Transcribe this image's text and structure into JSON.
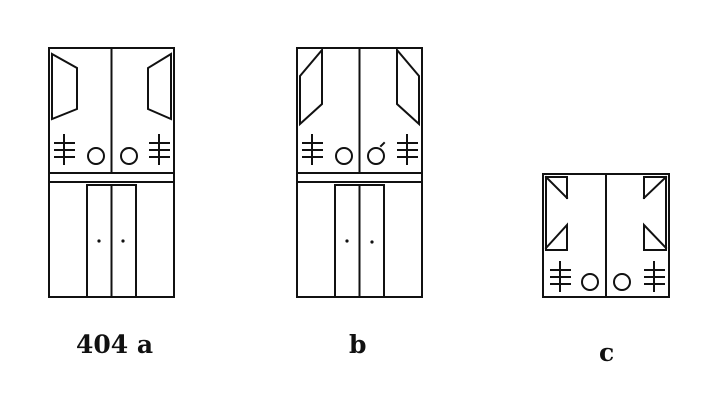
{
  "figure": {
    "captions": {
      "a": "404 a",
      "b": "b",
      "c": "c"
    },
    "ink_color": "#111111",
    "paper_color": "#ffffff"
  }
}
